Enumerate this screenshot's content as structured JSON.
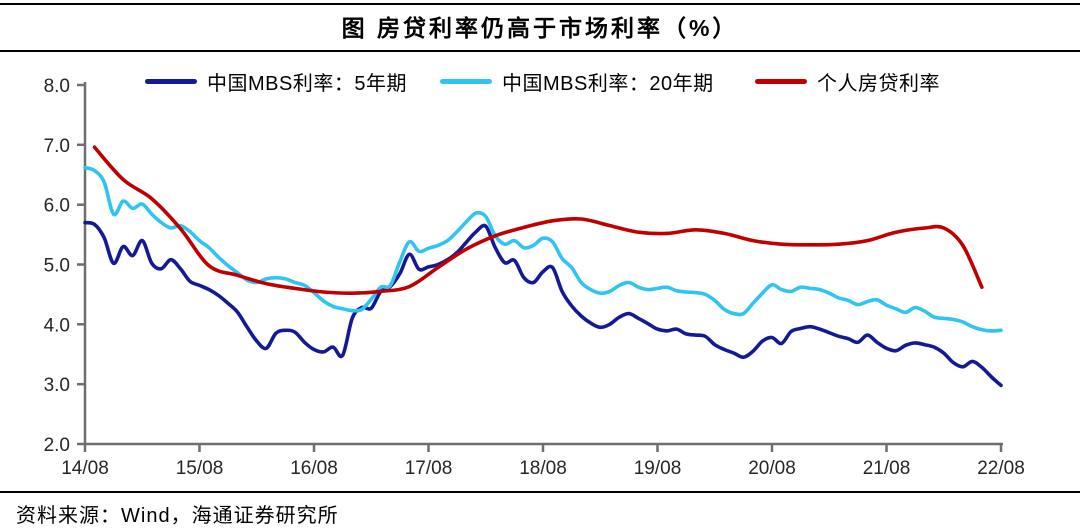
{
  "title": "图 房贷利率仍高于市场利率（%）",
  "source_note": "资料来源：Wind，海通证券研究所",
  "colors": {
    "mbs5": "#141996",
    "mbs20": "#2FC5F0",
    "mortgage": "#C00000",
    "axis": "#6e6e6e",
    "tick_label": "#262626",
    "rule": "#000000",
    "background": "#ffffff"
  },
  "chart_data": {
    "type": "line",
    "title": "图 房贷利率仍高于市场利率（%）",
    "xlabel": "",
    "ylabel": "",
    "grid": false,
    "legend_position": "top",
    "x_axis": {
      "unit": "months since 2014/08",
      "xlim_months": [
        0,
        96
      ],
      "tick_months": [
        0,
        12,
        24,
        36,
        48,
        60,
        72,
        84,
        96
      ],
      "tick_labels": [
        "14/08",
        "15/08",
        "16/08",
        "17/08",
        "18/08",
        "19/08",
        "20/08",
        "21/08",
        "22/08"
      ]
    },
    "y_axis": {
      "ylim": [
        2.0,
        8.0
      ],
      "tick_values": [
        8,
        7,
        6,
        5,
        4,
        3,
        2
      ],
      "tick_labels": [
        "8.0",
        "7.0",
        "6.0",
        "5.0",
        "4.0",
        "3.0",
        "2.0"
      ]
    },
    "series": [
      {
        "name": "中国MBS利率：5年期",
        "color": "#141996",
        "x_start_month": 0,
        "x_step_months": 1,
        "values": [
          5.7,
          5.67,
          5.45,
          5.02,
          5.3,
          5.15,
          5.4,
          5.02,
          4.93,
          5.08,
          4.93,
          4.72,
          4.65,
          4.58,
          4.48,
          4.35,
          4.2,
          3.95,
          3.72,
          3.6,
          3.85,
          3.9,
          3.87,
          3.7,
          3.58,
          3.54,
          3.62,
          3.48,
          4.1,
          4.28,
          4.27,
          4.55,
          4.63,
          4.85,
          5.17,
          4.92,
          4.96,
          5.0,
          5.08,
          5.2,
          5.38,
          5.55,
          5.64,
          5.28,
          5.03,
          5.07,
          4.78,
          4.7,
          4.88,
          4.95,
          4.55,
          4.31,
          4.14,
          4.02,
          3.95,
          4.0,
          4.12,
          4.18,
          4.1,
          4.01,
          3.92,
          3.89,
          3.92,
          3.84,
          3.82,
          3.8,
          3.66,
          3.58,
          3.52,
          3.45,
          3.55,
          3.72,
          3.78,
          3.68,
          3.88,
          3.93,
          3.96,
          3.92,
          3.86,
          3.8,
          3.76,
          3.7,
          3.82,
          3.7,
          3.6,
          3.56,
          3.65,
          3.69,
          3.66,
          3.62,
          3.52,
          3.36,
          3.29,
          3.38,
          3.28,
          3.12,
          2.98
        ]
      },
      {
        "name": "中国MBS利率：20年期",
        "color": "#2FC5F0",
        "x_start_month": 0,
        "x_step_months": 1,
        "values": [
          6.62,
          6.57,
          6.38,
          5.84,
          6.06,
          5.94,
          6.01,
          5.84,
          5.7,
          5.61,
          5.65,
          5.55,
          5.4,
          5.28,
          5.12,
          4.98,
          4.86,
          4.74,
          4.7,
          4.76,
          4.78,
          4.76,
          4.7,
          4.65,
          4.53,
          4.39,
          4.3,
          4.26,
          4.23,
          4.25,
          4.42,
          4.62,
          4.65,
          5.05,
          5.38,
          5.22,
          5.27,
          5.32,
          5.4,
          5.55,
          5.72,
          5.86,
          5.8,
          5.48,
          5.34,
          5.4,
          5.28,
          5.32,
          5.44,
          5.38,
          5.1,
          4.95,
          4.7,
          4.58,
          4.52,
          4.55,
          4.65,
          4.7,
          4.62,
          4.58,
          4.6,
          4.62,
          4.56,
          4.54,
          4.53,
          4.5,
          4.4,
          4.25,
          4.18,
          4.18,
          4.35,
          4.52,
          4.66,
          4.58,
          4.55,
          4.62,
          4.6,
          4.58,
          4.52,
          4.44,
          4.4,
          4.33,
          4.38,
          4.41,
          4.32,
          4.26,
          4.2,
          4.28,
          4.22,
          4.12,
          4.1,
          4.08,
          4.04,
          3.96,
          3.91,
          3.89,
          3.9
        ]
      },
      {
        "name": "个人房贷利率",
        "color": "#C00000",
        "points_month_value": [
          [
            1,
            6.96
          ],
          [
            4,
            6.42
          ],
          [
            7,
            6.1
          ],
          [
            10,
            5.6
          ],
          [
            13,
            4.98
          ],
          [
            16,
            4.82
          ],
          [
            19,
            4.68
          ],
          [
            22,
            4.6
          ],
          [
            25,
            4.54
          ],
          [
            28,
            4.52
          ],
          [
            31,
            4.55
          ],
          [
            34,
            4.63
          ],
          [
            37,
            4.95
          ],
          [
            40,
            5.26
          ],
          [
            43,
            5.48
          ],
          [
            46,
            5.62
          ],
          [
            49,
            5.73
          ],
          [
            52,
            5.76
          ],
          [
            55,
            5.65
          ],
          [
            58,
            5.54
          ],
          [
            61,
            5.52
          ],
          [
            64,
            5.58
          ],
          [
            67,
            5.52
          ],
          [
            70,
            5.4
          ],
          [
            73,
            5.34
          ],
          [
            76,
            5.33
          ],
          [
            79,
            5.34
          ],
          [
            82,
            5.4
          ],
          [
            85,
            5.54
          ],
          [
            88,
            5.61
          ],
          [
            90,
            5.61
          ],
          [
            92,
            5.32
          ],
          [
            94,
            4.62
          ]
        ]
      }
    ]
  }
}
